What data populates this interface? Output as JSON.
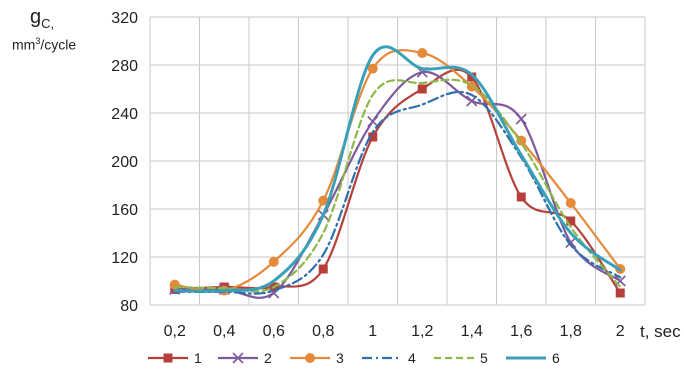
{
  "chart_data": {
    "type": "line",
    "ylabel_symbol": "g",
    "ylabel_subscript": "C,",
    "ylabel_unit_pre": "mm",
    "ylabel_unit_sup": "3",
    "ylabel_unit_post": "/cycle",
    "xlabel": "t, sec",
    "x": [
      0.2,
      0.4,
      0.6,
      0.8,
      1,
      1.2,
      1.4,
      1.6,
      1.8,
      2
    ],
    "x_tick_labels": [
      "0,2",
      "0,4",
      "0,6",
      "0,8",
      "1",
      "1,2",
      "1,4",
      "1,6",
      "1,8",
      "2"
    ],
    "ylim": [
      80,
      320
    ],
    "y_ticks": [
      80,
      120,
      160,
      200,
      240,
      280,
      320
    ],
    "grid": true,
    "legend_position": "bottom",
    "series": [
      {
        "name": "1",
        "color": "#b5403a",
        "dash": "solid",
        "marker": "square",
        "values": [
          93,
          95,
          95,
          110,
          220,
          260,
          270,
          170,
          150,
          90
        ]
      },
      {
        "name": "2",
        "color": "#7d5a9c",
        "dash": "solid",
        "marker": "x",
        "values": [
          93,
          93,
          90,
          155,
          233,
          274,
          250,
          235,
          132,
          100
        ]
      },
      {
        "name": "3",
        "color": "#e48a3a",
        "dash": "solid",
        "marker": "circle",
        "values": [
          97,
          92,
          116,
          167,
          277,
          290,
          262,
          217,
          165,
          110
        ]
      },
      {
        "name": "4",
        "color": "#2e6fb0",
        "dash": "dashdot",
        "marker": "none",
        "values": [
          91,
          91,
          92,
          122,
          224,
          247,
          255,
          203,
          130,
          103
        ]
      },
      {
        "name": "5",
        "color": "#8cb84a",
        "dash": "dash",
        "marker": "none",
        "values": [
          95,
          94,
          95,
          140,
          255,
          265,
          263,
          215,
          145,
          95
        ]
      },
      {
        "name": "6",
        "color": "#3aa0b8",
        "dash": "solid",
        "marker": "none",
        "values": [
          92,
          92,
          100,
          155,
          288,
          277,
          272,
          205,
          140,
          109
        ]
      }
    ]
  }
}
